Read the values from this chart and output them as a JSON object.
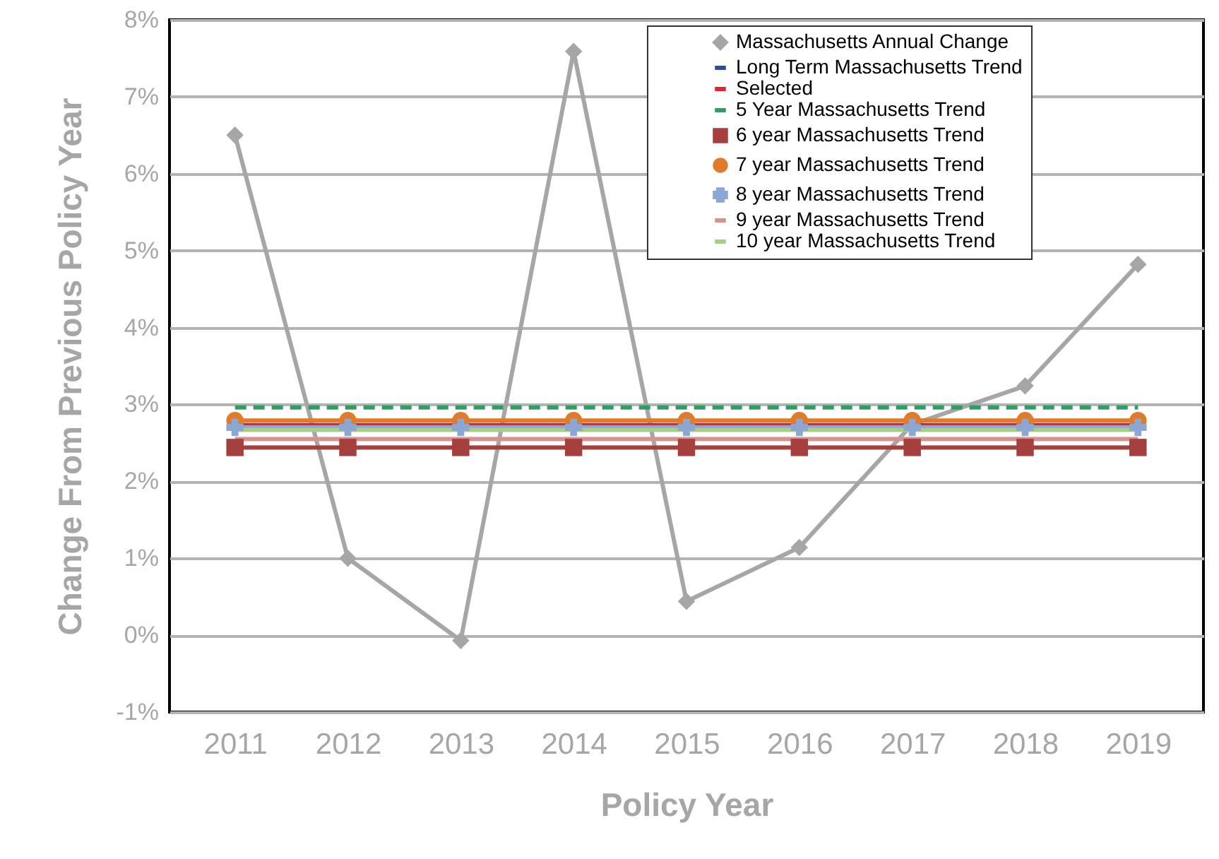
{
  "chart_data": {
    "type": "line",
    "xlabel": "Policy Year",
    "ylabel": "Change From Previous Policy Year",
    "categories": [
      "2011",
      "2012",
      "2013",
      "2014",
      "2015",
      "2016",
      "2017",
      "2018",
      "2019"
    ],
    "series": [
      {
        "name": "Massachusetts Annual Change",
        "color": "#a6a6a6",
        "marker": "diamond",
        "line_style": "solid",
        "values": [
          6.5,
          1.0,
          -0.07,
          7.59,
          0.44,
          1.14,
          2.74,
          3.24,
          4.82
        ]
      },
      {
        "name": "Long Term Massachusetts Trend",
        "color": "#2f4b9c",
        "marker": "none",
        "line_style": "dashed",
        "values": [
          null,
          null,
          null,
          null,
          null,
          null,
          null,
          null,
          null
        ]
      },
      {
        "name": "Selected",
        "color": "#e8202a",
        "marker": "none",
        "line_style": "solid",
        "values": [
          2.73,
          2.73,
          2.73,
          2.73,
          2.73,
          2.73,
          2.73,
          2.73,
          2.73
        ]
      },
      {
        "name": "5 Year Massachusetts Trend",
        "color": "#2e9e63",
        "marker": "none",
        "line_style": "dashed",
        "values": [
          2.96,
          2.96,
          2.96,
          2.96,
          2.96,
          2.96,
          2.96,
          2.96,
          2.96
        ]
      },
      {
        "name": "6 year Massachusetts Trend",
        "color": "#a5403e",
        "marker": "square",
        "line_style": "solid",
        "values": [
          2.44,
          2.44,
          2.44,
          2.44,
          2.44,
          2.44,
          2.44,
          2.44,
          2.44
        ]
      },
      {
        "name": "7 year Massachusetts Trend",
        "color": "#e07b2a",
        "marker": "circle",
        "line_style": "solid",
        "values": [
          2.79,
          2.79,
          2.79,
          2.79,
          2.79,
          2.79,
          2.79,
          2.79,
          2.79
        ]
      },
      {
        "name": "8 year Massachusetts Trend",
        "color": "#8aa7d6",
        "marker": "cross",
        "line_style": "solid",
        "values": [
          2.7,
          2.7,
          2.7,
          2.7,
          2.7,
          2.7,
          2.7,
          2.7,
          2.7
        ]
      },
      {
        "name": "9 year Massachusetts Trend",
        "color": "#d99093",
        "marker": "none",
        "line_style": "solid",
        "values": [
          2.55,
          2.55,
          2.55,
          2.55,
          2.55,
          2.55,
          2.55,
          2.55,
          2.55
        ]
      },
      {
        "name": "10 year Massachusetts Trend",
        "color": "#a9cc8a",
        "marker": "none",
        "line_style": "solid",
        "values": [
          2.67,
          2.67,
          2.67,
          2.67,
          2.67,
          2.67,
          2.67,
          2.67,
          2.67
        ]
      }
    ],
    "ylim": [
      -1,
      8
    ],
    "yticks": [
      {
        "value": -1,
        "label": "-1%"
      },
      {
        "value": 0,
        "label": "0%"
      },
      {
        "value": 1,
        "label": "1%"
      },
      {
        "value": 2,
        "label": "2%"
      },
      {
        "value": 3,
        "label": "3%"
      },
      {
        "value": 4,
        "label": "4%"
      },
      {
        "value": 5,
        "label": "5%"
      },
      {
        "value": 6,
        "label": "6%"
      },
      {
        "value": 7,
        "label": "7%"
      },
      {
        "value": 8,
        "label": "8%"
      }
    ],
    "grid": "y",
    "legend": "top right"
  }
}
